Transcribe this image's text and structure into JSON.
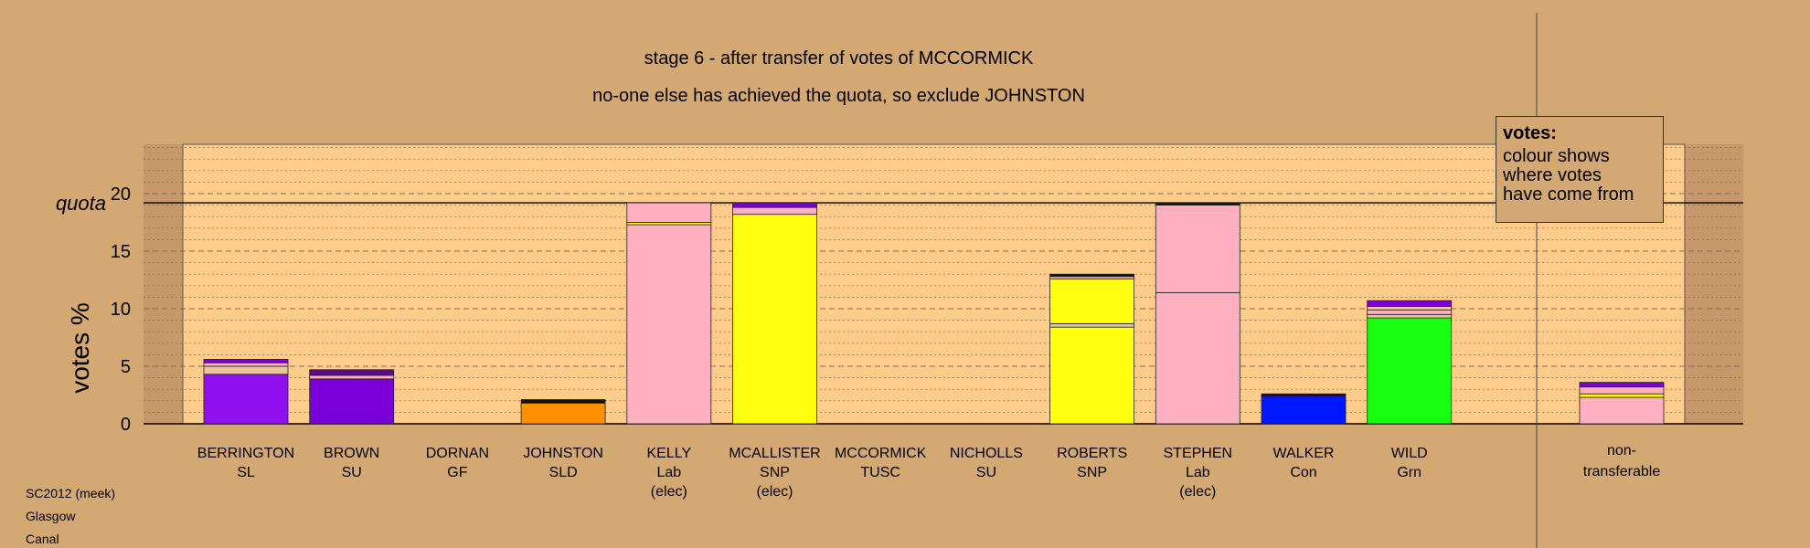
{
  "chart_data": {
    "type": "bar",
    "title": "stage 6 - after transfer of votes of MCCORMICK",
    "subtitle": "no-one else has achieved the quota, so exclude JOHNSTON",
    "ylabel": "votes %",
    "quota_label": "quota",
    "quota": 19.2,
    "ylim": [
      0,
      24
    ],
    "yticks": [
      0,
      5,
      10,
      15,
      20
    ],
    "categories": [
      {
        "name": "BERRINGTON",
        "party": "SL",
        "note": ""
      },
      {
        "name": "BROWN",
        "party": "SU",
        "note": ""
      },
      {
        "name": "DORNAN",
        "party": "GF",
        "note": ""
      },
      {
        "name": "JOHNSTON",
        "party": "SLD",
        "note": ""
      },
      {
        "name": "KELLY",
        "party": "Lab",
        "note": "(elec)"
      },
      {
        "name": "MCALLISTER",
        "party": "SNP",
        "note": "(elec)"
      },
      {
        "name": "MCCORMICK",
        "party": "TUSC",
        "note": ""
      },
      {
        "name": "NICHOLLS",
        "party": "SU",
        "note": ""
      },
      {
        "name": "ROBERTS",
        "party": "SNP",
        "note": ""
      },
      {
        "name": "STEPHEN",
        "party": "Lab",
        "note": "(elec)"
      },
      {
        "name": "WALKER",
        "party": "Con",
        "note": ""
      },
      {
        "name": "WILD",
        "party": "Grn",
        "note": ""
      }
    ],
    "nontransferable_label_1": "non-",
    "nontransferable_label_2": "transferable",
    "colors": {
      "SL": "#9010f0",
      "SU": "#7a00d8",
      "GF": "#22cc22",
      "SLD": "#ff9000",
      "Lab": "#ffb0c0",
      "SNP": "#ffff10",
      "TUSC": "#cc0000",
      "Con": "#0018ff",
      "Grn": "#18ff10",
      "dark": "#5a0a8a",
      "black": "#111111",
      "tan": "#e8c89a"
    },
    "stacks": [
      [
        {
          "v": 4.3,
          "c": "SL"
        },
        {
          "v": 0.7,
          "c": "tan"
        },
        {
          "v": 0.3,
          "c": "Lab"
        },
        {
          "v": 0.3,
          "c": "SU"
        }
      ],
      [
        {
          "v": 3.9,
          "c": "SU"
        },
        {
          "v": 0.3,
          "c": "Lab"
        },
        {
          "v": 0.5,
          "c": "dark"
        }
      ],
      [],
      [
        {
          "v": 1.8,
          "c": "SLD"
        },
        {
          "v": 0.3,
          "c": "black"
        }
      ],
      [
        {
          "v": 17.3,
          "c": "Lab"
        },
        {
          "v": 0.2,
          "c": "SNP"
        },
        {
          "v": 1.7,
          "c": "Lab"
        }
      ],
      [
        {
          "v": 18.2,
          "c": "SNP"
        },
        {
          "v": 0.6,
          "c": "Lab"
        },
        {
          "v": 0.4,
          "c": "SU"
        }
      ],
      [],
      [],
      [
        {
          "v": 8.4,
          "c": "SNP"
        },
        {
          "v": 0.3,
          "c": "tan"
        },
        {
          "v": 3.9,
          "c": "SNP"
        },
        {
          "v": 0.2,
          "c": "Lab"
        },
        {
          "v": 0.2,
          "c": "black"
        }
      ],
      [
        {
          "v": 11.4,
          "c": "Lab"
        },
        {
          "v": 7.6,
          "c": "Lab"
        },
        {
          "v": 0.2,
          "c": "black"
        }
      ],
      [
        {
          "v": 2.4,
          "c": "Con"
        },
        {
          "v": 0.2,
          "c": "black"
        }
      ],
      [
        {
          "v": 9.2,
          "c": "Grn"
        },
        {
          "v": 0.3,
          "c": "tan"
        },
        {
          "v": 0.4,
          "c": "Lab"
        },
        {
          "v": 0.3,
          "c": "tan"
        },
        {
          "v": 0.5,
          "c": "SU"
        }
      ],
      [
        {
          "v": 2.3,
          "c": "Lab"
        },
        {
          "v": 0.3,
          "c": "SNP"
        },
        {
          "v": 0.6,
          "c": "Lab"
        },
        {
          "v": 0.4,
          "c": "SU"
        }
      ]
    ]
  },
  "legend": {
    "heading": "votes:",
    "line1": "colour shows",
    "line2": "where votes",
    "line3": "have come from"
  },
  "footer": {
    "line1": "SC2012 (meek)",
    "line2": "Glasgow",
    "line3": "Canal"
  }
}
